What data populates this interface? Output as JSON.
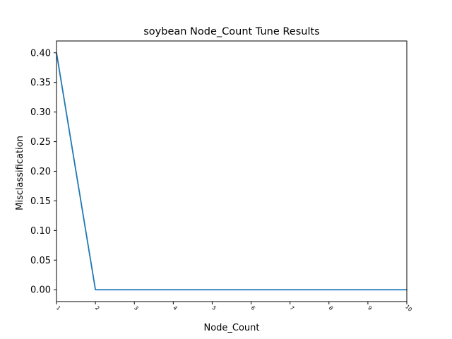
{
  "chart_data": {
    "type": "line",
    "title": "soybean Node_Count Tune Results",
    "xlabel": "Node_Count",
    "ylabel": "Misclassification",
    "x": [
      1,
      2,
      3,
      4,
      5,
      6,
      7,
      8,
      9,
      10
    ],
    "series": [
      {
        "values": [
          0.4,
          0.0,
          0.0,
          0.0,
          0.0,
          0.0,
          0.0,
          0.0,
          0.0,
          0.0
        ],
        "color": "#1f77b4"
      }
    ],
    "xlim": [
      1,
      10
    ],
    "ylim": [
      -0.02,
      0.42
    ],
    "xticks": [
      1,
      2,
      3,
      4,
      5,
      6,
      7,
      8,
      9,
      10
    ],
    "yticks": [
      0.0,
      0.05,
      0.1,
      0.15,
      0.2,
      0.25,
      0.3,
      0.35,
      0.4
    ],
    "ytick_labels": [
      "0.00",
      "0.05",
      "0.10",
      "0.15",
      "0.20",
      "0.25",
      "0.30",
      "0.35",
      "0.40"
    ],
    "grid": false,
    "legend": "none"
  }
}
